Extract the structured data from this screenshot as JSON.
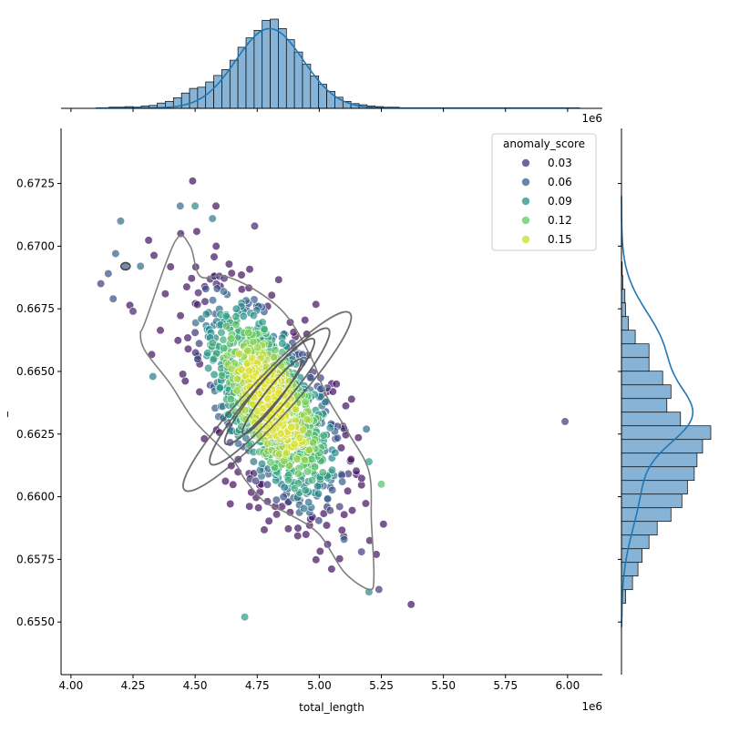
{
  "chart_data": {
    "type": "scatter",
    "xlabel": "total_length",
    "ylabel": "_",
    "x_offset_label": "1e6",
    "x_scale_factor": 1000000,
    "xlim": [
      3.96,
      6.14
    ],
    "ylim": [
      0.6529,
      0.6747
    ],
    "x_ticks": [
      {
        "value": 4.0,
        "label": "4.00"
      },
      {
        "value": 4.25,
        "label": "4.25"
      },
      {
        "value": 4.5,
        "label": "4.50"
      },
      {
        "value": 4.75,
        "label": "4.75"
      },
      {
        "value": 5.0,
        "label": "5.00"
      },
      {
        "value": 5.25,
        "label": "5.25"
      },
      {
        "value": 5.5,
        "label": "5.50"
      },
      {
        "value": 5.75,
        "label": "5.75"
      },
      {
        "value": 6.0,
        "label": "6.00"
      }
    ],
    "y_ticks": [
      {
        "value": 0.655,
        "label": "0.6550"
      },
      {
        "value": 0.6575,
        "label": "0.6575"
      },
      {
        "value": 0.66,
        "label": "0.6600"
      },
      {
        "value": 0.6625,
        "label": "0.6625"
      },
      {
        "value": 0.665,
        "label": "0.6650"
      },
      {
        "value": 0.6675,
        "label": "0.6675"
      },
      {
        "value": 0.67,
        "label": "0.6700"
      },
      {
        "value": 0.6725,
        "label": "0.6725"
      }
    ],
    "legend": {
      "title": "anomaly_score",
      "placement": "upper-right",
      "entries": [
        {
          "label": "0.03",
          "color": "#46327e"
        },
        {
          "label": "0.06",
          "color": "#365c8d"
        },
        {
          "label": "0.09",
          "color": "#21918c"
        },
        {
          "label": "0.12",
          "color": "#5ec962"
        },
        {
          "label": "0.15",
          "color": "#c8e020"
        }
      ]
    },
    "highlighted_points": [
      {
        "x": 4.12,
        "y": 0.6685,
        "score": 0.04
      },
      {
        "x": 4.15,
        "y": 0.6689,
        "score": 0.05
      },
      {
        "x": 4.17,
        "y": 0.6679,
        "score": 0.05
      },
      {
        "x": 4.18,
        "y": 0.6697,
        "score": 0.06
      },
      {
        "x": 4.2,
        "y": 0.671,
        "score": 0.07
      },
      {
        "x": 4.22,
        "y": 0.6692,
        "score": 0.06
      },
      {
        "x": 4.25,
        "y": 0.6674,
        "score": 0.03
      },
      {
        "x": 4.28,
        "y": 0.6692,
        "score": 0.07
      },
      {
        "x": 4.33,
        "y": 0.6648,
        "score": 0.08
      },
      {
        "x": 4.38,
        "y": 0.6681,
        "score": 0.02
      },
      {
        "x": 4.44,
        "y": 0.6716,
        "score": 0.07
      },
      {
        "x": 4.49,
        "y": 0.6726,
        "score": 0.02
      },
      {
        "x": 4.5,
        "y": 0.6716,
        "score": 0.09
      },
      {
        "x": 4.57,
        "y": 0.6711,
        "score": 0.08
      },
      {
        "x": 4.74,
        "y": 0.6708,
        "score": 0.03
      },
      {
        "x": 4.7,
        "y": 0.6552,
        "score": 0.1
      },
      {
        "x": 5.1,
        "y": 0.6583,
        "score": 0.06
      },
      {
        "x": 5.17,
        "y": 0.6578,
        "score": 0.04
      },
      {
        "x": 5.23,
        "y": 0.6577,
        "score": 0.02
      },
      {
        "x": 5.2,
        "y": 0.6562,
        "score": 0.09
      },
      {
        "x": 5.24,
        "y": 0.6563,
        "score": 0.04
      },
      {
        "x": 5.37,
        "y": 0.6557,
        "score": 0.02
      },
      {
        "x": 5.99,
        "y": 0.663,
        "score": 0.04
      },
      {
        "x": 5.2,
        "y": 0.6614,
        "score": 0.1
      },
      {
        "x": 5.25,
        "y": 0.6605,
        "score": 0.13
      },
      {
        "x": 5.19,
        "y": 0.6627,
        "score": 0.07
      }
    ],
    "cluster": {
      "point_count": 1200,
      "mean": [
        4.8,
        0.6638
      ],
      "sd": [
        0.14,
        0.0021
      ],
      "correlation": -0.62,
      "score_range": [
        0.02,
        0.17
      ],
      "opacity": 0.7
    },
    "kde_contours": {
      "color": "#5a5a5a",
      "levels": [
        {
          "center": [
            4.79,
            0.6638
          ],
          "rx": 0.155,
          "ry": 0.0046,
          "tilt_deg": -47,
          "opacity": 0.85
        },
        {
          "center": [
            4.8,
            0.664
          ],
          "rx": 0.115,
          "ry": 0.0034,
          "tilt_deg": -49,
          "opacity": 0.9
        },
        {
          "center": [
            4.8,
            0.6642
          ],
          "rx": 0.085,
          "ry": 0.0026,
          "tilt_deg": -50,
          "opacity": 0.95
        },
        {
          "center": [
            4.81,
            0.664
          ],
          "rx": 0.055,
          "ry": 0.0018,
          "tilt_deg": -52,
          "opacity": 1.0
        }
      ],
      "outer_path": [
        [
          4.3,
          0.667
        ],
        [
          4.42,
          0.6702
        ],
        [
          4.48,
          0.67
        ],
        [
          4.52,
          0.6688
        ],
        [
          4.62,
          0.6688
        ],
        [
          4.75,
          0.6682
        ],
        [
          4.87,
          0.6672
        ],
        [
          4.97,
          0.6655
        ],
        [
          5.03,
          0.664
        ],
        [
          5.12,
          0.6625
        ],
        [
          5.2,
          0.661
        ],
        [
          5.21,
          0.659
        ],
        [
          5.22,
          0.6568
        ],
        [
          5.2,
          0.6563
        ],
        [
          5.1,
          0.657
        ],
        [
          5.0,
          0.6585
        ],
        [
          4.88,
          0.6593
        ],
        [
          4.78,
          0.6598
        ],
        [
          4.7,
          0.6607
        ],
        [
          4.65,
          0.6615
        ],
        [
          4.5,
          0.663
        ],
        [
          4.4,
          0.6645
        ],
        [
          4.3,
          0.6658
        ],
        [
          4.28,
          0.6665
        ]
      ]
    },
    "top_histogram": {
      "bin_start": 4.12,
      "bin_width": 0.0325,
      "counts": [
        1,
        2,
        2,
        3,
        2,
        4,
        5,
        9,
        12,
        18,
        26,
        34,
        36,
        45,
        56,
        66,
        82,
        104,
        120,
        133,
        150,
        152,
        136,
        117,
        96,
        75,
        55,
        41,
        29,
        19,
        12,
        8,
        6,
        4,
        3,
        2,
        2,
        1,
        1,
        1,
        1,
        1,
        1,
        1,
        1,
        1,
        1,
        1,
        1,
        1,
        1,
        1,
        1,
        1,
        1,
        1,
        1,
        1
      ],
      "max_count": 152,
      "kde_color": "#1f77b4",
      "bar_color": "#87b4d6"
    },
    "right_histogram": {
      "bin_start": 0.6552,
      "bin_width": 0.000545,
      "counts": [
        1,
        6,
        16,
        24,
        30,
        40,
        52,
        72,
        88,
        96,
        106,
        110,
        118,
        130,
        86,
        66,
        72,
        60,
        40,
        40,
        20,
        10,
        6,
        5,
        2,
        1
      ],
      "max_count": 130,
      "kde_color": "#1f77b4",
      "bar_color": "#87b4d6"
    }
  }
}
